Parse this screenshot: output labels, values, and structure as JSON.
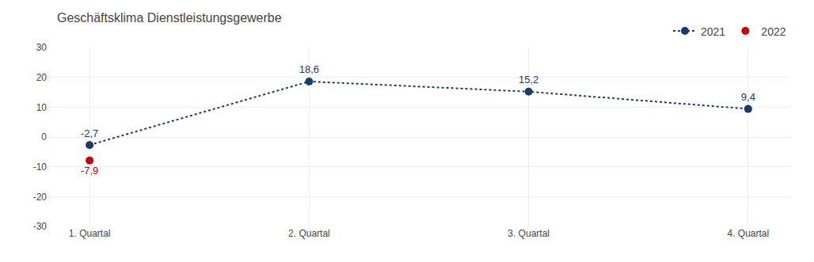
{
  "chart_data": {
    "type": "line",
    "title": "Geschäftsklima Dienstleistungsgewerbe",
    "categories": [
      "1. Quartal",
      "2. Quartal",
      "3. Quartal",
      "4. Quartal"
    ],
    "series": [
      {
        "name": "2021",
        "color": "#1a3a6b",
        "marker": "circle",
        "line_style": "dotted",
        "values": [
          -2.7,
          18.6,
          15.2,
          9.4
        ],
        "value_labels": [
          "-2,7",
          "18,6",
          "15,2",
          "9,4"
        ]
      },
      {
        "name": "2022",
        "type": "scatter",
        "color": "#cc0000",
        "marker": "circle",
        "values": [
          -7.9,
          null,
          null,
          null
        ],
        "value_labels": [
          "-7,9",
          null,
          null,
          null
        ]
      }
    ],
    "ylim": [
      -30,
      30
    ],
    "yticks": [
      -30,
      -20,
      -10,
      0,
      10,
      20,
      30
    ],
    "grid": true,
    "data_labels": true,
    "legend": "top right"
  }
}
